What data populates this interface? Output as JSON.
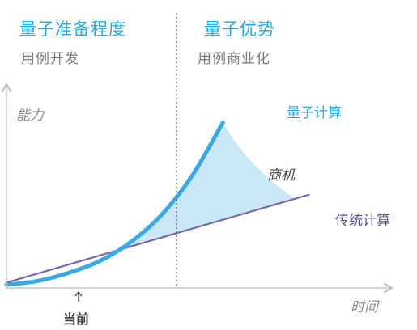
{
  "header": {
    "left_title": "量子准备程度",
    "left_subtitle": "用例开发",
    "right_title": "量子优势",
    "right_subtitle": "用例商业化"
  },
  "chart_data": {
    "type": "line",
    "xlabel": "时间",
    "ylabel": "能力",
    "x_marker_label": "当前",
    "fill_label": "商机",
    "series": [
      {
        "name": "量子计算",
        "color": "#39a9e3",
        "x": [
          0,
          10,
          20,
          30,
          40,
          50,
          60,
          70
        ],
        "y": [
          0.6,
          1.3,
          2.8,
          5.0,
          8.5,
          13.6,
          21.0,
          31.0
        ]
      },
      {
        "name": "传统计算",
        "color": "#7b67a8",
        "x": [
          0,
          98
        ],
        "y": [
          1.0,
          17.5
        ]
      }
    ],
    "fill_color": "#bfe3f6",
    "divider_color": "#555555"
  }
}
